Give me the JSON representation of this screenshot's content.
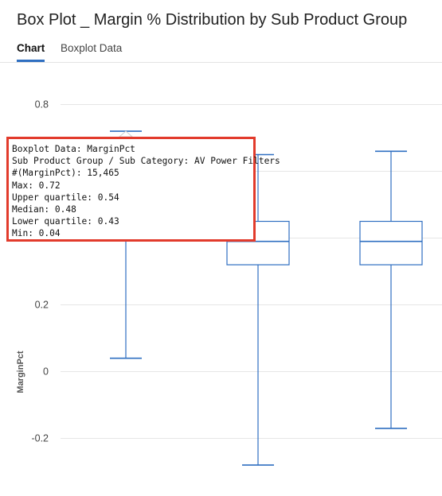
{
  "header": {
    "title": "Box Plot _ Margin % Distribution by Sub Product Group"
  },
  "tabs": [
    {
      "label": "Chart",
      "active": true
    },
    {
      "label": "Boxplot Data",
      "active": false
    }
  ],
  "colors": {
    "accent": "#2f6fc1",
    "box_stroke": "#2f6fc1",
    "grid": "#e6e6e6",
    "tooltip_border": "#e23b2c"
  },
  "tooltip": {
    "lines": [
      "Boxplot Data: MarginPct",
      "Sub Product Group / Sub Category: AV Power Filters",
      "#(MarginPct): 15,465",
      "Max: 0.72",
      "Upper quartile: 0.54",
      "Median: 0.48",
      "Lower quartile: 0.43",
      "Min: 0.04"
    ]
  },
  "chart_data": {
    "type": "boxplot",
    "title": "Box Plot _ Margin % Distribution by Sub Product Group",
    "ylabel": "MarginPct",
    "ylim": [
      -0.3,
      0.9
    ],
    "yticks": [
      0.8,
      0.6,
      0.4,
      0.2,
      0,
      -0.2
    ],
    "ytick_labels": [
      "0.8",
      "",
      "",
      "0.2",
      "0",
      "-0.2"
    ],
    "grid": true,
    "series": [
      {
        "name": "AV Power Filters",
        "min": 0.04,
        "q1": 0.43,
        "median": 0.48,
        "q3": 0.54,
        "max": 0.72
      },
      {
        "min": -0.28,
        "q1": 0.32,
        "median": 0.39,
        "q3": 0.45,
        "max": 0.65
      },
      {
        "min": -0.17,
        "q1": 0.32,
        "median": 0.39,
        "q3": 0.45,
        "max": 0.66
      }
    ]
  }
}
